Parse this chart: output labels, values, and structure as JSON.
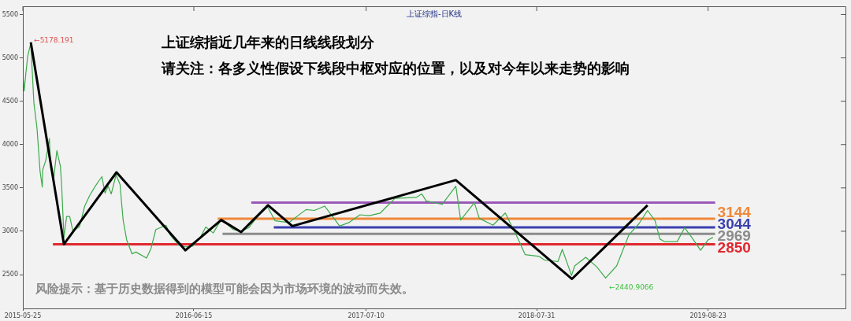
{
  "chart_data": {
    "type": "line",
    "title": "上证综指-日K线",
    "annotations": [
      "上证综指近几年来的日线线段划分",
      "请关注：各多义性假设下线段中枢对应的位置，以及对今年以来走势的影响",
      "风险提示：基于历史数据得到的模型可能会因为市场环境的波动而失效。",
      {
        "text": "←5178.191",
        "x": "2015-06-12",
        "y": 5178.191
      },
      {
        "text": "←2440.9066",
        "x": "2019-01-04",
        "y": 2440.9066
      }
    ],
    "marker": "none",
    "xlim": [
      "2015-05-25",
      "2020-06-29"
    ],
    "ylim": [
      2110,
      5595
    ],
    "xticks": [
      "2015-05-25",
      "2016-06-15",
      "2017-07-10",
      "2018-07-31",
      "2019-08-23"
    ],
    "yticks": [
      2500,
      3000,
      3500,
      4000,
      4500,
      5000,
      5500
    ],
    "series": [
      {
        "color": "#000000",
        "x": [
          "2015-06-12",
          "2015-08-26",
          "2015-12-23",
          "2016-05-27",
          "2016-08-16",
          "2016-09-30",
          "2016-11-30",
          "2017-01-24",
          "2018-01-29",
          "2018-10-19",
          "2019-04-08"
        ],
        "values": [
          5180,
          2850,
          3680,
          2780,
          3130,
          2990,
          3300,
          3060,
          3590,
          2450,
          3300
        ]
      },
      {
        "color": "#3cab4a",
        "x": [
          "2015-05-25",
          "2015-05-28",
          "2015-06-01",
          "2015-06-05",
          "2015-06-12",
          "2015-06-19",
          "2015-06-26",
          "2015-07-03",
          "2015-07-08",
          "2015-07-09",
          "2015-07-16",
          "2015-07-24",
          "2015-07-27",
          "2015-08-03",
          "2015-08-10",
          "2015-08-18",
          "2015-08-21",
          "2015-08-26",
          "2015-09-01",
          "2015-09-08",
          "2015-09-15",
          "2015-09-30",
          "2015-10-12",
          "2015-10-23",
          "2015-11-05",
          "2015-11-13",
          "2015-11-20",
          "2015-11-27",
          "2015-12-04",
          "2015-12-11",
          "2015-12-22",
          "2015-12-31",
          "2016-01-04",
          "2016-01-07",
          "2016-01-15",
          "2016-01-27",
          "2016-02-05",
          "2016-02-29",
          "2016-03-10",
          "2016-03-21",
          "2016-04-13",
          "2016-04-22",
          "2016-05-12",
          "2016-05-27",
          "2016-06-13",
          "2016-06-30",
          "2016-07-12",
          "2016-07-29",
          "2016-08-15",
          "2016-08-30",
          "2016-09-12",
          "2016-09-30",
          "2016-10-17",
          "2016-11-11",
          "2016-11-29",
          "2016-12-16",
          "2017-01-16",
          "2017-02-24",
          "2017-03-15",
          "2017-04-07",
          "2017-04-28",
          "2017-05-11",
          "2017-06-01",
          "2017-06-26",
          "2017-07-17",
          "2017-08-11",
          "2017-09-13",
          "2017-10-31",
          "2017-11-13",
          "2017-11-23",
          "2017-12-29",
          "2018-01-29",
          "2018-02-09",
          "2018-03-12",
          "2018-03-23",
          "2018-04-23",
          "2018-05-21",
          "2018-06-19",
          "2018-07-05",
          "2018-08-06",
          "2018-08-17",
          "2018-09-17",
          "2018-09-27",
          "2018-10-18",
          "2018-10-25",
          "2018-11-19",
          "2018-12-14",
          "2019-01-03",
          "2019-01-28",
          "2019-02-25",
          "2019-03-20",
          "2019-04-08",
          "2019-04-25",
          "2019-05-06",
          "2019-05-17",
          "2019-06-14",
          "2019-07-01",
          "2019-07-17",
          "2019-08-06",
          "2019-08-23",
          "2019-09-03"
        ],
        "values": [
          4810,
          4620,
          4830,
          5020,
          5170,
          4480,
          4190,
          3690,
          3510,
          3710,
          3820,
          4070,
          3730,
          3620,
          3930,
          3750,
          3510,
          2930,
          3170,
          3170,
          3010,
          3050,
          3290,
          3410,
          3520,
          3580,
          3630,
          3440,
          3520,
          3430,
          3650,
          3540,
          3300,
          3130,
          2900,
          2740,
          2760,
          2690,
          2800,
          3020,
          3070,
          2960,
          2840,
          2820,
          2830,
          2930,
          3050,
          2980,
          3130,
          3080,
          3020,
          3000,
          3040,
          3200,
          3280,
          3120,
          3100,
          3250,
          3240,
          3290,
          3150,
          3060,
          3100,
          3190,
          3180,
          3210,
          3380,
          3390,
          3430,
          3350,
          3310,
          3520,
          3130,
          3330,
          3150,
          3070,
          3210,
          2910,
          2730,
          2710,
          2670,
          2650,
          2790,
          2490,
          2600,
          2700,
          2590,
          2460,
          2600,
          2960,
          3090,
          3240,
          3120,
          2910,
          2880,
          2880,
          3040,
          2930,
          2780,
          2900,
          2930
        ]
      },
      {
        "color": "#9b59b6",
        "x": [
          "2016-10-23",
          "2019-09-08"
        ],
        "values": [
          3330,
          3330
        ]
      },
      {
        "name": "3144",
        "color": "#f0883a",
        "x": [
          "2016-08-08",
          "2019-09-08"
        ],
        "values": [
          3144,
          3144
        ]
      },
      {
        "name": "3044",
        "color": "#3a3fb0",
        "x": [
          "2016-12-13",
          "2019-09-08"
        ],
        "values": [
          3044,
          3044
        ]
      },
      {
        "name": "2969",
        "color": "#8c8c8c",
        "x": [
          "2016-08-19",
          "2019-09-08"
        ],
        "values": [
          2969,
          2969
        ]
      },
      {
        "name": "2850",
        "color": "#e0282e",
        "x": [
          "2015-08-01",
          "2019-09-08"
        ],
        "values": [
          2850,
          2850
        ]
      }
    ]
  }
}
